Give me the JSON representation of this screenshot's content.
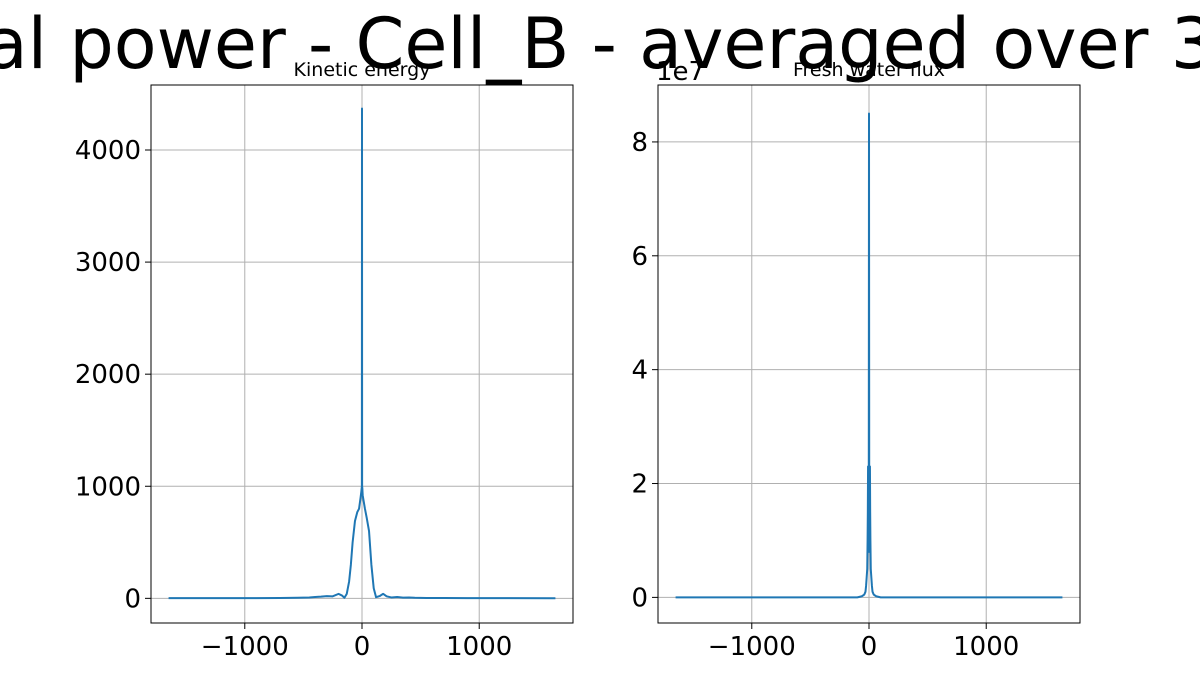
{
  "figure": {
    "suptitle_visible": "al power - Cell_B - averaged over 3"
  },
  "chart_data": [
    {
      "type": "line",
      "title": "Kinetic energy",
      "xlabel": "",
      "ylabel": "",
      "grid": true,
      "xlim": [
        -1800,
        1800
      ],
      "ylim": [
        -220,
        4580
      ],
      "xticks": [
        -1000,
        0,
        1000
      ],
      "xtick_labels": [
        "−1000",
        "0",
        "1000"
      ],
      "yticks": [
        0,
        1000,
        2000,
        3000,
        4000
      ],
      "ytick_labels": [
        "0",
        "1000",
        "2000",
        "3000",
        "4000"
      ],
      "offset_text": "",
      "series": [
        {
          "color": "#1f77b4",
          "x": [
            -1650,
            -900,
            -700,
            -550,
            -500,
            -450,
            -400,
            -350,
            -300,
            -250,
            -200,
            -170,
            -150,
            -130,
            -110,
            -95,
            -80,
            -60,
            -40,
            -25,
            -12,
            -6,
            -3,
            -1,
            0,
            1,
            3,
            6,
            12,
            25,
            40,
            60,
            80,
            100,
            120,
            150,
            180,
            210,
            250,
            300,
            350,
            400,
            450,
            550,
            700,
            900,
            1650
          ],
          "y": [
            2,
            2,
            3,
            5,
            6,
            8,
            12,
            15,
            20,
            18,
            40,
            25,
            5,
            40,
            150,
            300,
            500,
            690,
            770,
            800,
            900,
            950,
            980,
            1000,
            4370,
            1000,
            980,
            920,
            880,
            800,
            720,
            600,
            300,
            90,
            10,
            20,
            40,
            18,
            8,
            12,
            6,
            8,
            5,
            3,
            3,
            2,
            1
          ]
        }
      ]
    },
    {
      "type": "line",
      "title": "Fresh water flux",
      "xlabel": "",
      "ylabel": "",
      "grid": true,
      "xlim": [
        -1800,
        1800
      ],
      "ylim": [
        -0.45,
        9.0
      ],
      "xticks": [
        -1000,
        0,
        1000
      ],
      "xtick_labels": [
        "−1000",
        "0",
        "1000"
      ],
      "yticks": [
        0,
        2,
        4,
        6,
        8
      ],
      "ytick_labels": [
        "0",
        "2",
        "4",
        "6",
        "8"
      ],
      "offset_text": "1e7",
      "series": [
        {
          "color": "#1f77b4",
          "x": [
            -1650,
            -100,
            -60,
            -40,
            -30,
            -25,
            -20,
            -15,
            -12,
            -10,
            -8,
            -6,
            -4,
            -2,
            0,
            2,
            4,
            6,
            8,
            10,
            12,
            15,
            20,
            25,
            30,
            40,
            60,
            100,
            1650
          ],
          "y": [
            0,
            0,
            0.02,
            0.05,
            0.1,
            0.2,
            0.35,
            0.5,
            1.0,
            1.5,
            2.3,
            1.2,
            0.8,
            1.6,
            8.5,
            1.6,
            0.8,
            1.2,
            2.3,
            1.5,
            1.0,
            0.5,
            0.35,
            0.2,
            0.1,
            0.05,
            0.02,
            0,
            0
          ]
        }
      ]
    }
  ]
}
